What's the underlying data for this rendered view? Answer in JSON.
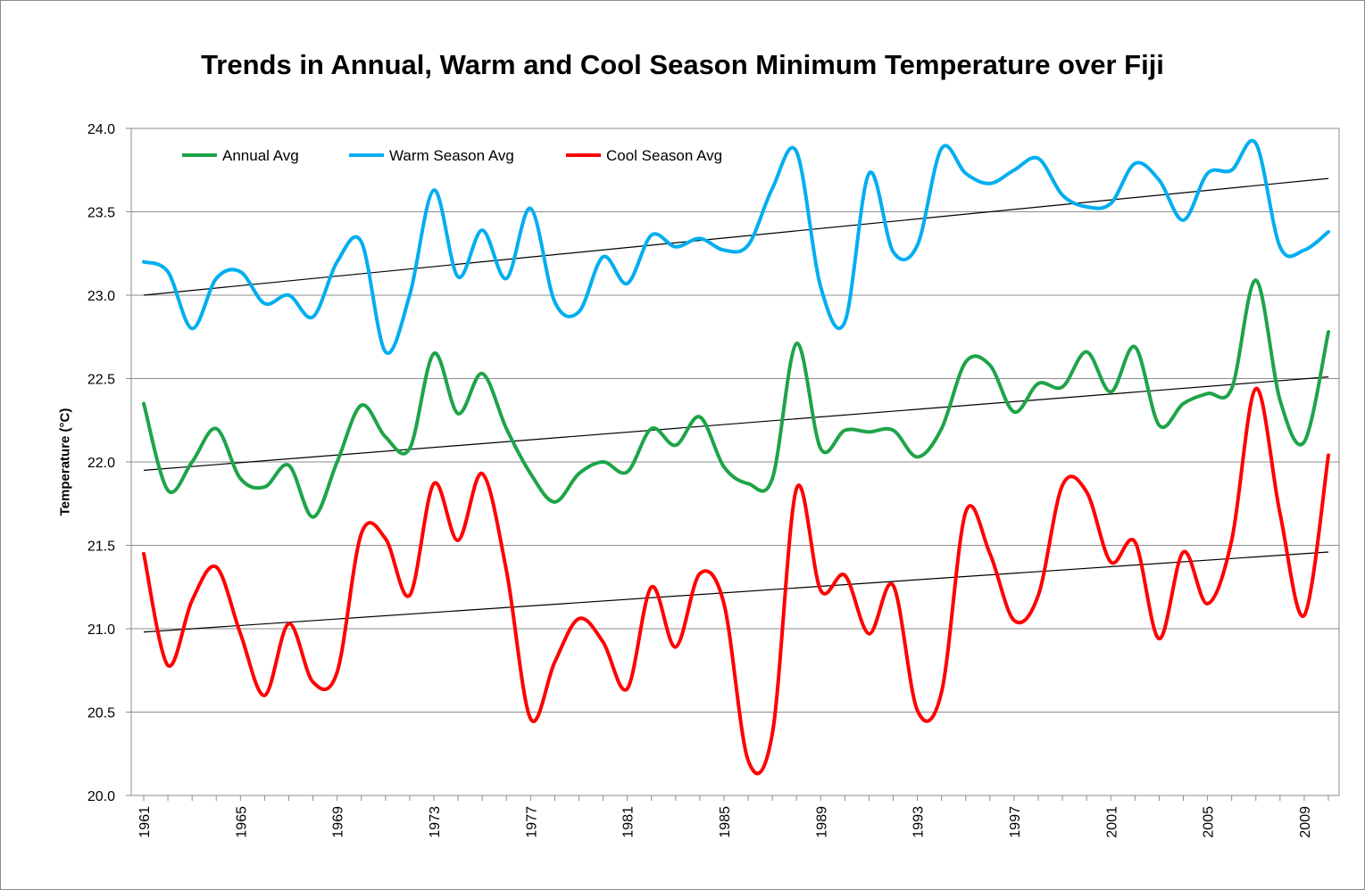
{
  "chart_data": {
    "type": "line",
    "title": "Trends in Annual, Warm and Cool Season Minimum Temperature over Fiji",
    "xlabel": "",
    "ylabel": "Temperature (°C)",
    "ylim": [
      20.0,
      24.0
    ],
    "yticks": [
      "20.0",
      "20.5",
      "21.0",
      "21.5",
      "22.0",
      "22.5",
      "23.0",
      "23.5",
      "24.0"
    ],
    "xticks": [
      "1961",
      "1965",
      "1969",
      "1973",
      "1977",
      "1981",
      "1985",
      "1989",
      "1993",
      "1997",
      "2001",
      "2005",
      "2009"
    ],
    "x": [
      1961,
      1962,
      1963,
      1964,
      1965,
      1966,
      1967,
      1968,
      1969,
      1970,
      1971,
      1972,
      1973,
      1974,
      1975,
      1976,
      1977,
      1978,
      1979,
      1980,
      1981,
      1982,
      1983,
      1984,
      1985,
      1986,
      1987,
      1988,
      1989,
      1990,
      1991,
      1992,
      1993,
      1994,
      1995,
      1996,
      1997,
      1998,
      1999,
      2000,
      2001,
      2002,
      2003,
      2004,
      2005,
      2006,
      2007,
      2008,
      2009,
      2010
    ],
    "grid": true,
    "legend_position": "top-left",
    "series": [
      {
        "name": "Annual Avg",
        "color": "#1ea448",
        "values": [
          22.35,
          21.83,
          22.0,
          22.2,
          21.9,
          21.85,
          21.98,
          21.67,
          22.0,
          22.34,
          22.15,
          22.08,
          22.65,
          22.29,
          22.53,
          22.2,
          21.93,
          21.76,
          21.93,
          22.0,
          21.94,
          22.2,
          22.1,
          22.27,
          21.97,
          21.87,
          21.9,
          22.71,
          22.08,
          22.19,
          22.18,
          22.19,
          22.03,
          22.2,
          22.6,
          22.58,
          22.3,
          22.47,
          22.45,
          22.66,
          22.42,
          22.69,
          22.22,
          22.35,
          22.41,
          22.44,
          23.09,
          22.37,
          22.12,
          22.78
        ],
        "trend": [
          21.95,
          22.51
        ]
      },
      {
        "name": "Warm Season Avg",
        "color": "#00aeef",
        "values": [
          23.2,
          23.14,
          22.8,
          23.1,
          23.14,
          22.95,
          23.0,
          22.87,
          23.2,
          23.32,
          22.66,
          23.0,
          23.63,
          23.11,
          23.39,
          23.1,
          23.52,
          22.96,
          22.9,
          23.23,
          23.07,
          23.36,
          23.29,
          23.34,
          23.27,
          23.3,
          23.64,
          23.86,
          23.05,
          22.84,
          23.73,
          23.26,
          23.3,
          23.88,
          23.73,
          23.67,
          23.75,
          23.82,
          23.6,
          23.53,
          23.55,
          23.79,
          23.69,
          23.45,
          23.73,
          23.75,
          23.91,
          23.29,
          23.27,
          23.38
        ],
        "trend": [
          23.0,
          23.7
        ]
      },
      {
        "name": "Cool Season Avg",
        "color": "#ff0000",
        "values": [
          21.45,
          20.78,
          21.17,
          21.37,
          20.97,
          20.6,
          21.03,
          20.68,
          20.74,
          21.57,
          21.54,
          21.2,
          21.87,
          21.53,
          21.93,
          21.35,
          20.46,
          20.8,
          21.06,
          20.92,
          20.64,
          21.25,
          20.89,
          21.33,
          21.15,
          20.21,
          20.37,
          21.84,
          21.23,
          21.32,
          20.97,
          21.26,
          20.51,
          20.62,
          21.7,
          21.45,
          21.05,
          21.2,
          21.86,
          21.82,
          21.4,
          21.52,
          20.94,
          21.46,
          21.15,
          21.53,
          22.44,
          21.69,
          21.08,
          22.04
        ],
        "trend": [
          20.98,
          21.46
        ]
      }
    ]
  }
}
